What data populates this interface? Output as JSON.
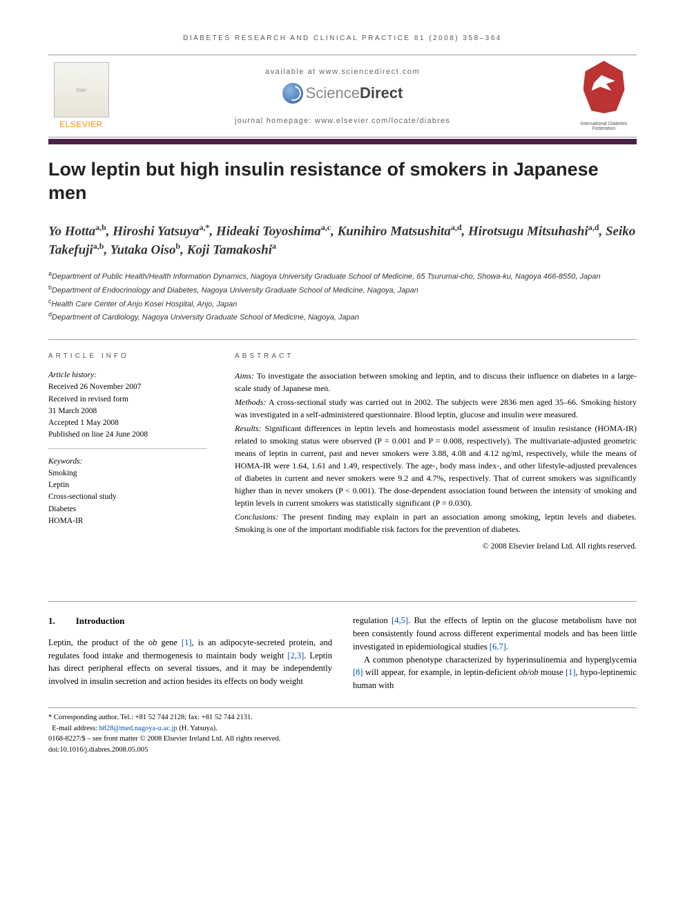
{
  "running_header": "DIABETES RESEARCH AND CLINICAL PRACTICE 81 (2008) 358–364",
  "top": {
    "available": "available at www.sciencedirect.com",
    "sd_sci": "Science",
    "sd_dir": "Direct",
    "homepage": "journal homepage: www.elsevier.com/locate/diabres",
    "elsevier": "ELSEVIER",
    "idf": "International Diabetes Federation"
  },
  "title": "Low leptin but high insulin resistance of smokers in Japanese men",
  "authors_html": "Yo Hotta<sup>a,b</sup>, Hiroshi Yatsuya<sup>a,*</sup>, Hideaki Toyoshima<sup>a,c</sup>, Kunihiro Matsushita<sup>a,d</sup>, Hirotsugu Mitsuhashi<sup>a,d</sup>, Seiko Takefuji<sup>a,b</sup>, Yutaka Oiso<sup>b</sup>, Koji Tamakoshi<sup>a</sup>",
  "affiliations": [
    {
      "sup": "a",
      "text": "Department of Public Health/Health Information Dynamics, Nagoya University Graduate School of Medicine, 65 Tsurumai-cho, Showa-ku, Nagoya 466-8550, Japan"
    },
    {
      "sup": "b",
      "text": "Department of Endocrinology and Diabetes, Nagoya University Graduate School of Medicine, Nagoya, Japan"
    },
    {
      "sup": "c",
      "text": "Health Care Center of Anjo Kosei Hospital, Anjo, Japan"
    },
    {
      "sup": "d",
      "text": "Department of Cardiology, Nagoya University Graduate School of Medicine, Nagoya, Japan"
    }
  ],
  "article_info": {
    "head": "ARTICLE INFO",
    "history_label": "Article history:",
    "history": [
      "Received 26 November 2007",
      "Received in revised form",
      "31 March 2008",
      "Accepted 1 May 2008",
      "Published on line 24 June 2008"
    ],
    "keywords_label": "Keywords:",
    "keywords": [
      "Smoking",
      "Leptin",
      "Cross-sectional study",
      "Diabetes",
      "HOMA-IR"
    ]
  },
  "abstract": {
    "head": "ABSTRACT",
    "aims_lead": "Aims:",
    "aims": " To investigate the association between smoking and leptin, and to discuss their influence on diabetes in a large-scale study of Japanese men.",
    "methods_lead": "Methods:",
    "methods": " A cross-sectional study was carried out in 2002. The subjects were 2836 men aged 35–66. Smoking history was investigated in a self-administered questionnaire. Blood leptin, glucose and insulin were measured.",
    "results_lead": "Results:",
    "results": " Significant differences in leptin levels and homeostasis model assessment of insulin resistance (HOMA-IR) related to smoking status were observed (P = 0.001 and P = 0.008, respectively). The multivariate-adjusted geometric means of leptin in current, past and never smokers were 3.88, 4.08 and 4.12 ng/ml, respectively, while the means of HOMA-IR were 1.64, 1.61 and 1.49, respectively. The age-, body mass index-, and other lifestyle-adjusted prevalences of diabetes in current and never smokers were 9.2 and 4.7%, respectively. That of current smokers was significantly higher than in never smokers (P < 0.001). The dose-dependent association found between the intensity of smoking and leptin levels in current smokers was statistically significant (P = 0.030).",
    "conclusions_lead": "Conclusions:",
    "conclusions": " The present finding may explain in part an association among smoking, leptin levels and diabetes. Smoking is one of the important modifiable risk factors for the prevention of diabetes.",
    "copyright": "© 2008 Elsevier Ireland Ltd. All rights reserved."
  },
  "section": {
    "num": "1.",
    "title": "Introduction"
  },
  "body": {
    "col1_p1_a": "Leptin, the product of the ",
    "col1_p1_ob": "ob",
    "col1_p1_b": " gene ",
    "col1_p1_r1": "[1]",
    "col1_p1_c": ", is an adipocyte-secreted protein, and regulates food intake and thermogenesis to maintain body weight ",
    "col1_p1_r2": "[2,3]",
    "col1_p1_d": ". Leptin has direct peripheral effects on several tissues, and it may be independently involved in insulin secretion and action besides its effects on body weight",
    "col2_p1_a": "regulation ",
    "col2_p1_r1": "[4,5]",
    "col2_p1_b": ". But the effects of leptin on the glucose metabolism have not been consistently found across different experimental models and has been little investigated in epidemiological studies ",
    "col2_p1_r2": "[6,7]",
    "col2_p1_c": ".",
    "col2_p2_a": "A common phenotype characterized by hyperinsulinemia and hyperglycemia ",
    "col2_p2_r1": "[8]",
    "col2_p2_b": " will appear, for example, in leptin-deficient ",
    "col2_p2_ob": "ob/ob",
    "col2_p2_c": " mouse ",
    "col2_p2_r2": "[1]",
    "col2_p2_d": ", hypo-leptinemic human with"
  },
  "footnotes": {
    "corr": "* Corresponding author. Tel.: +81 52 744 2128; fax: +81 52 744 2131.",
    "email_label": "E-mail address: ",
    "email": "h828@med.nagoya-u.ac.jp",
    "email_tail": " (H. Yatsuya).",
    "issn": "0168-8227/$ – see front matter © 2008 Elsevier Ireland Ltd. All rights reserved.",
    "doi": "doi:10.1016/j.diabres.2008.05.005"
  }
}
